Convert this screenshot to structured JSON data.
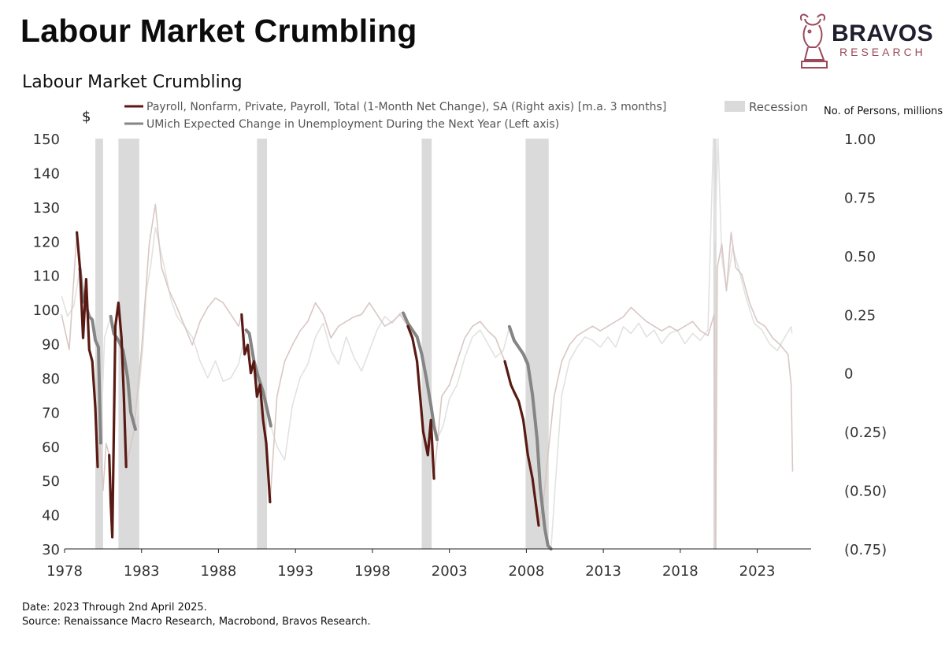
{
  "header": {
    "title": "Labour Market Crumbling",
    "brand_name": "BRAVOS",
    "brand_sub": "RESEARCH",
    "brand_color": "#9a4a5a",
    "brand_icon": "bull-chess-knight-icon"
  },
  "footer": {
    "date_note": "Date: 2023 Through 2nd April 2025.",
    "source_note": "Source: Renaissance Macro Research, Macrobond, Bravos Research."
  },
  "chart_data": {
    "type": "line",
    "title": "Labour Market Crumbling",
    "left_axis_unit": "$",
    "right_axis_unit": "No. of Persons, millions",
    "x_ticks": [
      "1978",
      "1983",
      "1988",
      "1993",
      "1998",
      "2003",
      "2008",
      "2013",
      "2018",
      "2023"
    ],
    "x_range": [
      1978,
      2026.5
    ],
    "left_ticks": [
      "150",
      "140",
      "130",
      "120",
      "110",
      "100",
      "90",
      "80",
      "70",
      "60",
      "50",
      "40",
      "30"
    ],
    "left_range": [
      30,
      150
    ],
    "right_ticks": [
      "1.00",
      "0.75",
      "0.50",
      "0.25",
      "0",
      "(0.25)",
      "(0.50)",
      "(0.75)"
    ],
    "right_range": [
      -0.75,
      1.0
    ],
    "grid": false,
    "legend_position": "top",
    "legend": {
      "payroll": "Payroll, Nonfarm, Private, Payroll, Total (1-Month Net Change), SA (Right axis) [m.a. 3 months]",
      "umich": "UMich Expected Change in Unemployment During the Next Year (Left axis)",
      "recession": "Recession"
    },
    "colors": {
      "payroll": "#5a1a14",
      "payroll_faded": "#d9c7c4",
      "umich": "#858585",
      "umich_faded": "#e2e2e2",
      "recession": "#dadada"
    },
    "recessions": [
      [
        1980.0,
        1980.5
      ],
      [
        1981.5,
        1982.85
      ],
      [
        1990.5,
        1991.15
      ],
      [
        2001.2,
        2001.85
      ],
      [
        2007.95,
        2009.45
      ],
      [
        2020.15,
        2020.35
      ]
    ],
    "series": [
      {
        "name": "UMich Expected Change in Unemployment During the Next Year (Left axis)",
        "axis": "left",
        "highlight_ranges": [
          [
            1979.0,
            1980.35
          ],
          [
            1981.0,
            1982.6
          ],
          [
            1989.8,
            1991.4
          ],
          [
            2000.0,
            2002.2
          ],
          [
            2006.9,
            2009.6
          ]
        ],
        "points": [
          [
            1977.8,
            104
          ],
          [
            1978.2,
            98
          ],
          [
            1978.6,
            101
          ],
          [
            1979.0,
            112
          ],
          [
            1979.2,
            103
          ],
          [
            1979.4,
            101
          ],
          [
            1979.6,
            98
          ],
          [
            1979.8,
            97
          ],
          [
            1980.0,
            91
          ],
          [
            1980.2,
            89
          ],
          [
            1980.35,
            61
          ],
          [
            1980.6,
            92
          ],
          [
            1981.0,
            98
          ],
          [
            1981.2,
            93
          ],
          [
            1981.5,
            91
          ],
          [
            1981.8,
            88
          ],
          [
            1982.1,
            80
          ],
          [
            1982.3,
            70
          ],
          [
            1982.6,
            65
          ],
          [
            1982.9,
            80
          ],
          [
            1983.1,
            90
          ],
          [
            1983.3,
            105
          ],
          [
            1983.6,
            113
          ],
          [
            1983.9,
            124
          ],
          [
            1984.2,
            118
          ],
          [
            1984.5,
            112
          ],
          [
            1984.9,
            103
          ],
          [
            1985.3,
            98
          ],
          [
            1985.8,
            95
          ],
          [
            1986.3,
            92
          ],
          [
            1986.8,
            85
          ],
          [
            1987.3,
            80
          ],
          [
            1987.8,
            85
          ],
          [
            1988.3,
            79
          ],
          [
            1988.8,
            80
          ],
          [
            1989.3,
            84
          ],
          [
            1989.8,
            94
          ],
          [
            1990.0,
            93
          ],
          [
            1990.3,
            85
          ],
          [
            1990.6,
            80
          ],
          [
            1990.9,
            76
          ],
          [
            1991.2,
            70
          ],
          [
            1991.4,
            66
          ],
          [
            1991.8,
            60
          ],
          [
            1992.3,
            56
          ],
          [
            1992.8,
            72
          ],
          [
            1993.3,
            80
          ],
          [
            1993.8,
            84
          ],
          [
            1994.3,
            92
          ],
          [
            1994.8,
            96
          ],
          [
            1995.3,
            88
          ],
          [
            1995.8,
            84
          ],
          [
            1996.3,
            92
          ],
          [
            1996.8,
            86
          ],
          [
            1997.3,
            82
          ],
          [
            1997.8,
            88
          ],
          [
            1998.3,
            94
          ],
          [
            1998.8,
            98
          ],
          [
            1999.3,
            96
          ],
          [
            1999.8,
            99
          ],
          [
            2000.0,
            99
          ],
          [
            2000.3,
            96
          ],
          [
            2000.6,
            94
          ],
          [
            2000.9,
            92
          ],
          [
            2001.2,
            87
          ],
          [
            2001.5,
            80
          ],
          [
            2001.8,
            72
          ],
          [
            2002.0,
            66
          ],
          [
            2002.2,
            62
          ],
          [
            2002.6,
            66
          ],
          [
            2003.0,
            74
          ],
          [
            2003.5,
            78
          ],
          [
            2004.0,
            86
          ],
          [
            2004.5,
            92
          ],
          [
            2005.0,
            94
          ],
          [
            2005.5,
            90
          ],
          [
            2006.0,
            86
          ],
          [
            2006.5,
            88
          ],
          [
            2006.9,
            95
          ],
          [
            2007.2,
            91
          ],
          [
            2007.5,
            89
          ],
          [
            2007.8,
            87
          ],
          [
            2008.1,
            84
          ],
          [
            2008.4,
            75
          ],
          [
            2008.7,
            62
          ],
          [
            2008.9,
            48
          ],
          [
            2009.2,
            36
          ],
          [
            2009.4,
            31
          ],
          [
            2009.6,
            30
          ],
          [
            2009.9,
            50
          ],
          [
            2010.3,
            75
          ],
          [
            2010.8,
            85
          ],
          [
            2011.3,
            89
          ],
          [
            2011.8,
            92
          ],
          [
            2012.3,
            91
          ],
          [
            2012.8,
            89
          ],
          [
            2013.3,
            92
          ],
          [
            2013.8,
            89
          ],
          [
            2014.3,
            95
          ],
          [
            2014.8,
            93
          ],
          [
            2015.3,
            96
          ],
          [
            2015.8,
            92
          ],
          [
            2016.3,
            94
          ],
          [
            2016.8,
            90
          ],
          [
            2017.3,
            93
          ],
          [
            2017.8,
            94
          ],
          [
            2018.3,
            90
          ],
          [
            2018.8,
            93
          ],
          [
            2019.3,
            91
          ],
          [
            2019.8,
            94
          ],
          [
            2020.15,
            150
          ],
          [
            2020.25,
            120
          ],
          [
            2020.45,
            150
          ],
          [
            2020.7,
            115
          ],
          [
            2021.0,
            106
          ],
          [
            2021.4,
            118
          ],
          [
            2021.8,
            112
          ],
          [
            2022.3,
            103
          ],
          [
            2022.8,
            96
          ],
          [
            2023.3,
            94
          ],
          [
            2023.8,
            90
          ],
          [
            2024.3,
            88
          ],
          [
            2024.8,
            92
          ],
          [
            2025.2,
            95
          ],
          [
            2025.25,
            93
          ]
        ]
      },
      {
        "name": "Payroll, Nonfarm, Private, Payroll, Total (1-Month Net Change), SA (Right axis) [m.a. 3 months]",
        "axis": "right",
        "highlight_ranges": [
          [
            1978.8,
            1980.2
          ],
          [
            1980.9,
            1982.0
          ],
          [
            1989.5,
            1991.35
          ],
          [
            2000.3,
            2002.0
          ],
          [
            2006.6,
            2008.8
          ]
        ],
        "points": [
          [
            1977.8,
            0.25
          ],
          [
            1978.3,
            0.1
          ],
          [
            1978.8,
            0.6
          ],
          [
            1979.0,
            0.45
          ],
          [
            1979.2,
            0.15
          ],
          [
            1979.4,
            0.4
          ],
          [
            1979.6,
            0.1
          ],
          [
            1979.8,
            0.05
          ],
          [
            1980.0,
            -0.15
          ],
          [
            1980.15,
            -0.4
          ],
          [
            1980.3,
            -0.3
          ],
          [
            1980.5,
            -0.5
          ],
          [
            1980.7,
            -0.3
          ],
          [
            1980.9,
            -0.35
          ],
          [
            1981.0,
            -0.55
          ],
          [
            1981.1,
            -0.7
          ],
          [
            1981.3,
            0.2
          ],
          [
            1981.5,
            0.3
          ],
          [
            1981.7,
            0.15
          ],
          [
            1981.85,
            -0.1
          ],
          [
            1982.0,
            -0.4
          ],
          [
            1982.5,
            -0.25
          ],
          [
            1983.0,
            0.1
          ],
          [
            1983.5,
            0.55
          ],
          [
            1983.9,
            0.72
          ],
          [
            1984.3,
            0.45
          ],
          [
            1984.8,
            0.35
          ],
          [
            1985.3,
            0.28
          ],
          [
            1985.8,
            0.2
          ],
          [
            1986.3,
            0.12
          ],
          [
            1986.8,
            0.22
          ],
          [
            1987.3,
            0.28
          ],
          [
            1987.8,
            0.32
          ],
          [
            1988.3,
            0.3
          ],
          [
            1988.8,
            0.25
          ],
          [
            1989.3,
            0.2
          ],
          [
            1989.5,
            0.25
          ],
          [
            1989.7,
            0.08
          ],
          [
            1989.9,
            0.12
          ],
          [
            1990.1,
            0.0
          ],
          [
            1990.3,
            0.05
          ],
          [
            1990.5,
            -0.1
          ],
          [
            1990.7,
            -0.05
          ],
          [
            1990.9,
            -0.2
          ],
          [
            1991.1,
            -0.3
          ],
          [
            1991.35,
            -0.55
          ],
          [
            1991.8,
            -0.1
          ],
          [
            1992.3,
            0.05
          ],
          [
            1992.8,
            0.12
          ],
          [
            1993.3,
            0.18
          ],
          [
            1993.8,
            0.22
          ],
          [
            1994.3,
            0.3
          ],
          [
            1994.8,
            0.25
          ],
          [
            1995.3,
            0.15
          ],
          [
            1995.8,
            0.2
          ],
          [
            1996.3,
            0.22
          ],
          [
            1996.8,
            0.24
          ],
          [
            1997.3,
            0.25
          ],
          [
            1997.8,
            0.3
          ],
          [
            1998.3,
            0.25
          ],
          [
            1998.8,
            0.2
          ],
          [
            1999.3,
            0.22
          ],
          [
            1999.8,
            0.25
          ],
          [
            2000.3,
            0.2
          ],
          [
            2000.6,
            0.15
          ],
          [
            2000.9,
            0.05
          ],
          [
            2001.1,
            -0.1
          ],
          [
            2001.3,
            -0.25
          ],
          [
            2001.6,
            -0.35
          ],
          [
            2001.8,
            -0.2
          ],
          [
            2002.0,
            -0.45
          ],
          [
            2002.5,
            -0.1
          ],
          [
            2003.0,
            -0.05
          ],
          [
            2003.5,
            0.05
          ],
          [
            2004.0,
            0.15
          ],
          [
            2004.5,
            0.2
          ],
          [
            2005.0,
            0.22
          ],
          [
            2005.5,
            0.18
          ],
          [
            2006.0,
            0.15
          ],
          [
            2006.6,
            0.05
          ],
          [
            2006.8,
            0.0
          ],
          [
            2007.0,
            -0.05
          ],
          [
            2007.2,
            -0.08
          ],
          [
            2007.5,
            -0.12
          ],
          [
            2007.8,
            -0.2
          ],
          [
            2008.1,
            -0.35
          ],
          [
            2008.4,
            -0.45
          ],
          [
            2008.6,
            -0.55
          ],
          [
            2008.8,
            -0.65
          ],
          [
            2009.1,
            -0.55
          ],
          [
            2009.4,
            -0.35
          ],
          [
            2009.8,
            -0.1
          ],
          [
            2010.3,
            0.05
          ],
          [
            2010.8,
            0.12
          ],
          [
            2011.3,
            0.16
          ],
          [
            2011.8,
            0.18
          ],
          [
            2012.3,
            0.2
          ],
          [
            2012.8,
            0.18
          ],
          [
            2013.3,
            0.2
          ],
          [
            2013.8,
            0.22
          ],
          [
            2014.3,
            0.24
          ],
          [
            2014.8,
            0.28
          ],
          [
            2015.3,
            0.25
          ],
          [
            2015.8,
            0.22
          ],
          [
            2016.3,
            0.2
          ],
          [
            2016.8,
            0.18
          ],
          [
            2017.3,
            0.2
          ],
          [
            2017.8,
            0.18
          ],
          [
            2018.3,
            0.2
          ],
          [
            2018.8,
            0.22
          ],
          [
            2019.3,
            0.18
          ],
          [
            2019.8,
            0.16
          ],
          [
            2020.2,
            0.25
          ],
          [
            2020.3,
            -0.75
          ],
          [
            2020.4,
            0.45
          ],
          [
            2020.7,
            0.55
          ],
          [
            2021.0,
            0.35
          ],
          [
            2021.3,
            0.6
          ],
          [
            2021.6,
            0.45
          ],
          [
            2022.0,
            0.42
          ],
          [
            2022.5,
            0.3
          ],
          [
            2023.0,
            0.22
          ],
          [
            2023.5,
            0.2
          ],
          [
            2024.0,
            0.15
          ],
          [
            2024.5,
            0.12
          ],
          [
            2025.0,
            0.08
          ],
          [
            2025.2,
            -0.05
          ],
          [
            2025.3,
            -0.42
          ]
        ]
      }
    ]
  }
}
